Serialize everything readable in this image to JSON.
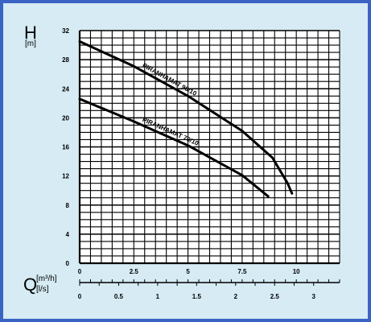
{
  "colors": {
    "border": "#3b63c4",
    "background": "#d6ebf4",
    "ink": "#000000"
  },
  "axis_h": {
    "symbol": "H",
    "unit": "[m]"
  },
  "axis_q": {
    "symbol": "Q",
    "unit_top": "[m³/h]",
    "unit_bottom": "[l/s]"
  },
  "chart_data": {
    "type": "line",
    "title": "",
    "grid": true,
    "legend": "none (curves labeled inline)",
    "xlabel": "Q [m³/h]",
    "x2label": "Q [l/s]",
    "ylabel": "H [m]",
    "xlim": [
      0,
      12
    ],
    "ylim": [
      0,
      32
    ],
    "x_ticks": [
      "0",
      "2.5",
      "5",
      "7.5",
      "10"
    ],
    "x2_ticks": [
      "0",
      "0.5",
      "1",
      "1.5",
      "2",
      "2.5",
      "3"
    ],
    "y_ticks": [
      "0",
      "4",
      "8",
      "12",
      "16",
      "20",
      "24",
      "28",
      "32"
    ],
    "series": [
      {
        "name": "PIRANHAMAT 90/10",
        "x": [
          0,
          2.5,
          5,
          7.5,
          8.9,
          9.6,
          9.8
        ],
        "y": [
          30.5,
          27.1,
          23.0,
          18.2,
          14.5,
          11.0,
          9.6
        ]
      },
      {
        "name": "PIRANHAMAT 70/10",
        "x": [
          0,
          2.5,
          5,
          7.5,
          8.7
        ],
        "y": [
          22.6,
          19.5,
          16.2,
          12.1,
          9.2
        ]
      }
    ]
  }
}
